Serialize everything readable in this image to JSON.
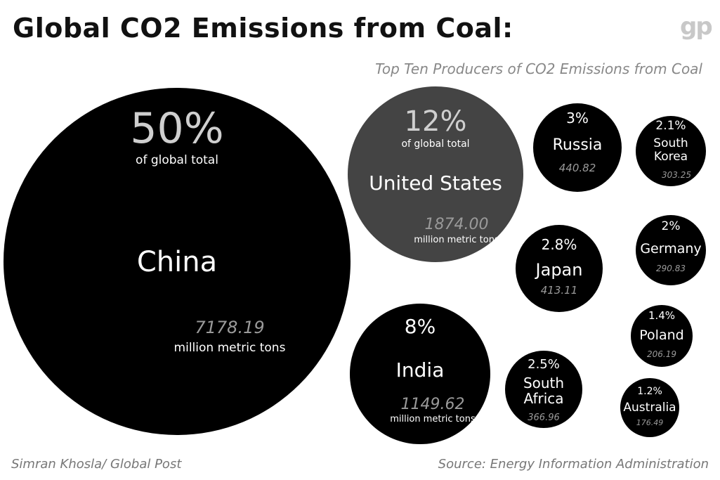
{
  "header": {
    "title": "Global CO2 Emissions from Coal:",
    "subtitle": "Top Ten Producers of CO2 Emissions from Coal",
    "logo": "gp"
  },
  "footer": {
    "credit": "Simran Khosla/ Global Post",
    "source": "Source: Energy Information Administration"
  },
  "chart_data": {
    "type": "bubble",
    "title": "Global CO2 Emissions from Coal:",
    "subtitle": "Top Ten Producers of CO2 Emissions from Coal",
    "unit": "million metric tons",
    "share_label": "of global total",
    "colors": {
      "default": "#000000",
      "highlight": "#444444",
      "value_text": "#9a9a9a",
      "label_text": "#ffffff"
    },
    "countries": [
      {
        "name": "China",
        "value_text": "7178.19",
        "value": 7178.19,
        "share": "50%",
        "show_share_label": true,
        "show_unit": true
      },
      {
        "name": "United States",
        "value_text": "1874.00",
        "value": 1874.0,
        "share": "12%",
        "show_share_label": true,
        "show_unit": true
      },
      {
        "name": "India",
        "value_text": "1149.62",
        "value": 1149.62,
        "share": "8%",
        "show_share_label": false,
        "show_unit": true
      },
      {
        "name": "Russia",
        "value_text": "440.82",
        "value": 440.82,
        "share": "3%",
        "show_share_label": false,
        "show_unit": false
      },
      {
        "name": "Japan",
        "value_text": "413.11",
        "value": 413.11,
        "share": "2.8%",
        "show_share_label": false,
        "show_unit": false
      },
      {
        "name": "South Africa",
        "value_text": "366.96",
        "value": 366.96,
        "share": "2.5%",
        "show_share_label": false,
        "show_unit": false
      },
      {
        "name": "South Korea",
        "value_text": "303.25",
        "value": 303.25,
        "share": "2.1%",
        "show_share_label": false,
        "show_unit": false
      },
      {
        "name": "Germany",
        "value_text": "290.83",
        "value": 290.83,
        "share": "2%",
        "show_share_label": false,
        "show_unit": false
      },
      {
        "name": "Poland",
        "value_text": "206.19",
        "value": 206.19,
        "share": "1.4%",
        "show_share_label": false,
        "show_unit": false
      },
      {
        "name": "Australia",
        "value_text": "176.49",
        "value": 176.49,
        "share": "1.2%",
        "show_share_label": false,
        "show_unit": false
      }
    ]
  }
}
